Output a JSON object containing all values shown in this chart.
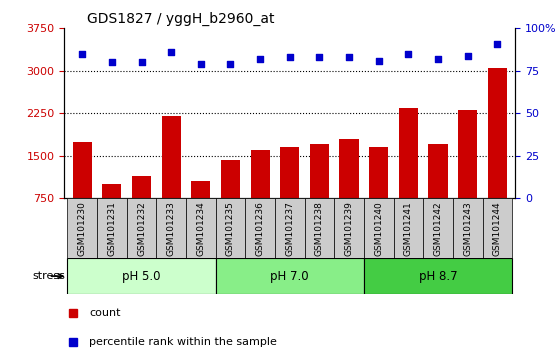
{
  "title": "GDS1827 / yggH_b2960_at",
  "samples": [
    "GSM101230",
    "GSM101231",
    "GSM101232",
    "GSM101233",
    "GSM101234",
    "GSM101235",
    "GSM101236",
    "GSM101237",
    "GSM101238",
    "GSM101239",
    "GSM101240",
    "GSM101241",
    "GSM101242",
    "GSM101243",
    "GSM101244"
  ],
  "counts": [
    1750,
    1000,
    1150,
    2200,
    1050,
    1430,
    1600,
    1650,
    1700,
    1800,
    1650,
    2350,
    1700,
    2300,
    3050
  ],
  "percentile_ranks": [
    85,
    80,
    80,
    86,
    79,
    79,
    82,
    83,
    83,
    83,
    81,
    85,
    82,
    84,
    91
  ],
  "bar_color": "#cc0000",
  "dot_color": "#0000cc",
  "left_axis_color": "#cc0000",
  "right_axis_color": "#0000cc",
  "ylim_left": [
    750,
    3750
  ],
  "ylim_right": [
    0,
    100
  ],
  "yticks_left": [
    750,
    1500,
    2250,
    3000,
    3750
  ],
  "yticks_right": [
    0,
    25,
    50,
    75,
    100
  ],
  "grid_values": [
    1500,
    2250,
    3000
  ],
  "groups": [
    {
      "label": "pH 5.0",
      "start": 0,
      "end": 5,
      "color": "#ccffcc"
    },
    {
      "label": "pH 7.0",
      "start": 5,
      "end": 10,
      "color": "#88ee88"
    },
    {
      "label": "pH 8.7",
      "start": 10,
      "end": 15,
      "color": "#44cc44"
    }
  ],
  "legend_items": [
    {
      "label": "count",
      "color": "#cc0000"
    },
    {
      "label": "percentile rank within the sample",
      "color": "#0000cc"
    }
  ],
  "background_color": "#ffffff",
  "tick_bg_color": "#cccccc"
}
